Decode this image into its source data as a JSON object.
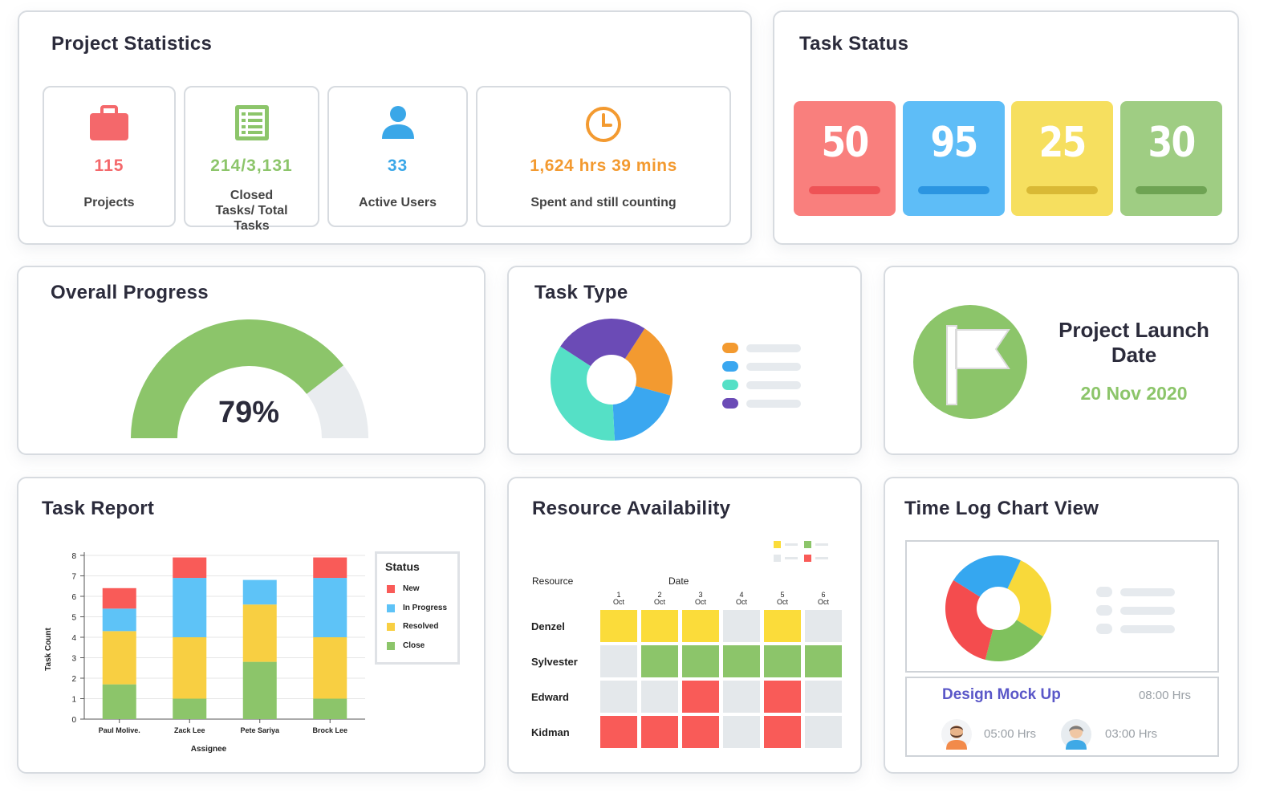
{
  "project_statistics": {
    "title": "Project Statistics",
    "stats": [
      {
        "value": "115",
        "label": "Projects",
        "icon": "briefcase-icon",
        "color": "#f4686b"
      },
      {
        "value": "214/3,131",
        "label": "Closed Tasks/ Total Tasks",
        "icon": "tasklist-icon",
        "color": "#8cc56a"
      },
      {
        "value": "33",
        "label": "Active Users",
        "icon": "user-icon",
        "color": "#3aa7e8"
      },
      {
        "value": "1,624 hrs 39 mins",
        "label": "Spent and still counting",
        "icon": "clock-icon",
        "color": "#f39a30"
      }
    ]
  },
  "task_status": {
    "title": "Task Status",
    "tiles": [
      {
        "value": "50",
        "color": "#f97f7d",
        "bar": "#ee5356"
      },
      {
        "value": "95",
        "color": "#5ebdf7",
        "bar": "#2b95e1"
      },
      {
        "value": "25",
        "color": "#f6df5f",
        "bar": "#d9b935"
      },
      {
        "value": "30",
        "color": "#9fcd83",
        "bar": "#6ea353"
      }
    ]
  },
  "overall_progress": {
    "title": "Overall Progress",
    "percent_label": "79%",
    "fraction": 0.79
  },
  "task_type": {
    "title": "Task Type",
    "slices": [
      {
        "value": 20,
        "color": "#f39a30"
      },
      {
        "value": 20,
        "color": "#3aa7f0"
      },
      {
        "value": 35,
        "color": "#55e0c6"
      },
      {
        "value": 25,
        "color": "#6b4bb6"
      }
    ]
  },
  "launch": {
    "title_line1": "Project Launch",
    "title_line2": "Date",
    "date": "20 Nov 2020",
    "icon": "flag-icon"
  },
  "task_report": {
    "title": "Task Report",
    "chart_data": {
      "type": "bar",
      "stacked": true,
      "categories": [
        "Paul Molive.",
        "Zack Lee",
        "Pete Sariya",
        "Brock Lee"
      ],
      "series": [
        {
          "name": "Close",
          "color": "#8cc56a",
          "values": [
            1.7,
            1.0,
            2.8,
            1.0
          ]
        },
        {
          "name": "Resolved",
          "color": "#f8cf42",
          "values": [
            2.6,
            3.0,
            2.8,
            3.0
          ]
        },
        {
          "name": "In Progress",
          "color": "#5ec3f7",
          "values": [
            1.1,
            2.9,
            1.2,
            2.9
          ]
        },
        {
          "name": "New",
          "color": "#f95b58",
          "values": [
            1.0,
            1.0,
            0,
            1.0
          ]
        }
      ],
      "ylim": [
        0,
        8
      ],
      "yticks": [
        "0",
        "1",
        "2",
        "3",
        "4",
        "5",
        "6",
        "7",
        "8"
      ],
      "xlabel": "Assignee",
      "ylabel": "Task Count",
      "legend_title": "Status",
      "legend_order": [
        "New",
        "In Progress",
        "Resolved",
        "Close"
      ]
    }
  },
  "resource": {
    "title": "Resource Availability",
    "resource_label": "Resource",
    "date_label": "Date",
    "days": [
      {
        "d": "1",
        "m": "Oct"
      },
      {
        "d": "2",
        "m": "Oct"
      },
      {
        "d": "3",
        "m": "Oct"
      },
      {
        "d": "4",
        "m": "Oct"
      },
      {
        "d": "5",
        "m": "Oct"
      },
      {
        "d": "6",
        "m": "Oct"
      }
    ],
    "rows": [
      {
        "name": "Denzel",
        "cells": [
          "y",
          "y",
          "y",
          "g0",
          "y",
          "g0"
        ]
      },
      {
        "name": "Sylvester",
        "cells": [
          "g0",
          "gr",
          "gr",
          "gr",
          "gr",
          "gr"
        ]
      },
      {
        "name": "Edward",
        "cells": [
          "g0",
          "g0",
          "r",
          "g0",
          "r",
          "g0"
        ]
      },
      {
        "name": "Kidman",
        "cells": [
          "r",
          "r",
          "r",
          "g0",
          "r",
          "g0"
        ]
      }
    ],
    "colors": {
      "y": "#fbdc3a",
      "gr": "#8cc56a",
      "r": "#f95b58",
      "g0": "#e4e8eb"
    }
  },
  "time_log": {
    "title": "Time Log Chart View",
    "task_name": "Design Mock Up",
    "total": "08:00 Hrs",
    "entries": [
      {
        "hours": "05:00 Hrs"
      },
      {
        "hours": "03:00 Hrs"
      }
    ],
    "slices": [
      {
        "value": 27,
        "color": "#f8d93a"
      },
      {
        "value": 20,
        "color": "#7fc15d"
      },
      {
        "value": 30,
        "color": "#f44c4e"
      },
      {
        "value": 23,
        "color": "#35a7f0"
      }
    ]
  }
}
